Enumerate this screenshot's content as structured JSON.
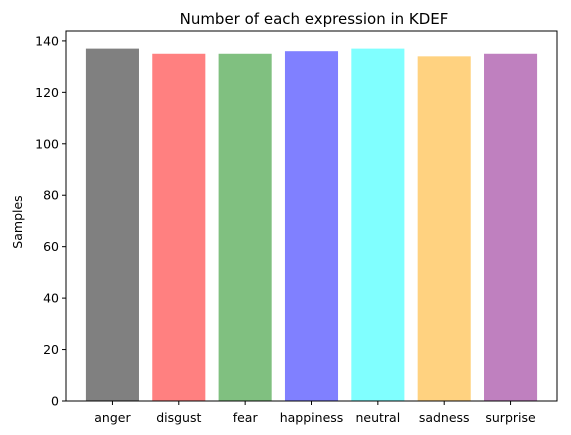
{
  "chart_data": {
    "type": "bar",
    "title": "Number of each expression in KDEF",
    "xlabel": "",
    "ylabel": "Samples",
    "categories": [
      "anger",
      "disgust",
      "fear",
      "happiness",
      "neutral",
      "sadness",
      "surprise"
    ],
    "values": [
      137,
      135,
      135,
      136,
      137,
      134,
      135
    ],
    "colors": [
      "#808080",
      "#ff8080",
      "#80c080",
      "#8080ff",
      "#80ffff",
      "#ffd280",
      "#bf80bf"
    ],
    "ylim": [
      0,
      143.85
    ],
    "yticks": [
      0,
      20,
      40,
      60,
      80,
      100,
      120,
      140
    ],
    "grid": false,
    "legend": "none"
  }
}
